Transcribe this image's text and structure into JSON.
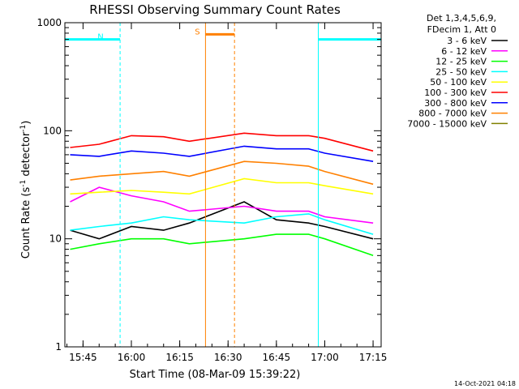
{
  "chart_data": {
    "type": "line",
    "title": "RHESSI Observing Summary Count Rates",
    "xlabel": "Start Time (08-Mar-09 15:39:22)",
    "ylabel_prefix": "Count Rate (s",
    "ylabel_sup1": "-1",
    "ylabel_mid": " detector",
    "ylabel_sup2": "-1",
    "ylabel_suffix": ")",
    "yscale": "log",
    "ylim": [
      1,
      1000
    ],
    "xlim": [
      "15:39:22",
      "17:17:30"
    ],
    "x_ticks": [
      "15:45",
      "16:00",
      "16:15",
      "16:30",
      "16:45",
      "17:00",
      "17:15"
    ],
    "y_ticks": [
      "1",
      "10",
      "100",
      "1000"
    ],
    "footer_date": "14-Oct-2021 04:18",
    "legend_header": [
      "Det 1,3,4,5,6,9,",
      "FDecim 1, Att 0"
    ],
    "legend_position": "right",
    "series": [
      {
        "name": "3 - 6 keV",
        "color": "#000000",
        "points": [
          [
            "15:41",
            12
          ],
          [
            "15:50",
            10
          ],
          [
            "16:00",
            13
          ],
          [
            "16:10",
            12
          ],
          [
            "16:18",
            14
          ],
          [
            "16:35",
            22
          ],
          [
            "16:45",
            15
          ],
          [
            "16:55",
            14
          ],
          [
            "17:00",
            13
          ],
          [
            "17:15",
            10
          ]
        ]
      },
      {
        "name": "6 - 12 keV",
        "color": "#ff00ff",
        "points": [
          [
            "15:41",
            22
          ],
          [
            "15:50",
            30
          ],
          [
            "16:00",
            25
          ],
          [
            "16:10",
            22
          ],
          [
            "16:18",
            18
          ],
          [
            "16:35",
            20
          ],
          [
            "16:45",
            18
          ],
          [
            "16:55",
            18
          ],
          [
            "17:00",
            16
          ],
          [
            "17:15",
            14
          ]
        ]
      },
      {
        "name": "12 - 25 keV",
        "color": "#00ff00",
        "points": [
          [
            "15:41",
            8
          ],
          [
            "15:50",
            9
          ],
          [
            "16:00",
            10
          ],
          [
            "16:10",
            10
          ],
          [
            "16:18",
            9
          ],
          [
            "16:35",
            10
          ],
          [
            "16:45",
            11
          ],
          [
            "16:55",
            11
          ],
          [
            "17:00",
            10
          ],
          [
            "17:15",
            7
          ]
        ]
      },
      {
        "name": "25 - 50 keV",
        "color": "#00ffff",
        "points": [
          [
            "15:41",
            12
          ],
          [
            "15:50",
            13
          ],
          [
            "16:00",
            14
          ],
          [
            "16:10",
            16
          ],
          [
            "16:18",
            15
          ],
          [
            "16:35",
            14
          ],
          [
            "16:45",
            16
          ],
          [
            "16:55",
            17
          ],
          [
            "17:00",
            15
          ],
          [
            "17:15",
            11
          ]
        ]
      },
      {
        "name": "50 - 100 keV",
        "color": "#ffff00",
        "points": [
          [
            "15:41",
            26
          ],
          [
            "15:50",
            27
          ],
          [
            "16:00",
            28
          ],
          [
            "16:10",
            27
          ],
          [
            "16:18",
            26
          ],
          [
            "16:35",
            36
          ],
          [
            "16:45",
            33
          ],
          [
            "16:55",
            33
          ],
          [
            "17:00",
            31
          ],
          [
            "17:15",
            26
          ]
        ]
      },
      {
        "name": "100 - 300 keV",
        "color": "#ff0000",
        "points": [
          [
            "15:41",
            70
          ],
          [
            "15:50",
            75
          ],
          [
            "16:00",
            90
          ],
          [
            "16:10",
            88
          ],
          [
            "16:18",
            80
          ],
          [
            "16:35",
            95
          ],
          [
            "16:45",
            90
          ],
          [
            "16:55",
            90
          ],
          [
            "17:00",
            85
          ],
          [
            "17:15",
            65
          ]
        ]
      },
      {
        "name": "300 - 800 keV",
        "color": "#0000ff",
        "points": [
          [
            "15:41",
            60
          ],
          [
            "15:50",
            58
          ],
          [
            "16:00",
            65
          ],
          [
            "16:10",
            62
          ],
          [
            "16:18",
            58
          ],
          [
            "16:35",
            72
          ],
          [
            "16:45",
            68
          ],
          [
            "16:55",
            68
          ],
          [
            "17:00",
            62
          ],
          [
            "17:15",
            52
          ]
        ]
      },
      {
        "name": "800 - 7000 keV",
        "color": "#ff8000",
        "points": [
          [
            "15:41",
            35
          ],
          [
            "15:50",
            38
          ],
          [
            "16:00",
            40
          ],
          [
            "16:10",
            42
          ],
          [
            "16:18",
            38
          ],
          [
            "16:35",
            52
          ],
          [
            "16:45",
            50
          ],
          [
            "16:55",
            47
          ],
          [
            "17:00",
            42
          ],
          [
            "17:15",
            32
          ]
        ]
      },
      {
        "name": "7000 - 15000 keV",
        "color": "#808000",
        "points": []
      }
    ],
    "annotations": [
      {
        "label": "N",
        "color": "#00ffff",
        "start": "15:39:22",
        "end": "15:56:30",
        "level": 700
      },
      {
        "label": "S",
        "color": "#ff8000",
        "start": "16:23:00",
        "end": "16:32:00",
        "level": 780
      },
      {
        "label": "",
        "color": "#00ffff",
        "start": "16:58:00",
        "end": "17:17:30",
        "level": 700
      }
    ]
  }
}
